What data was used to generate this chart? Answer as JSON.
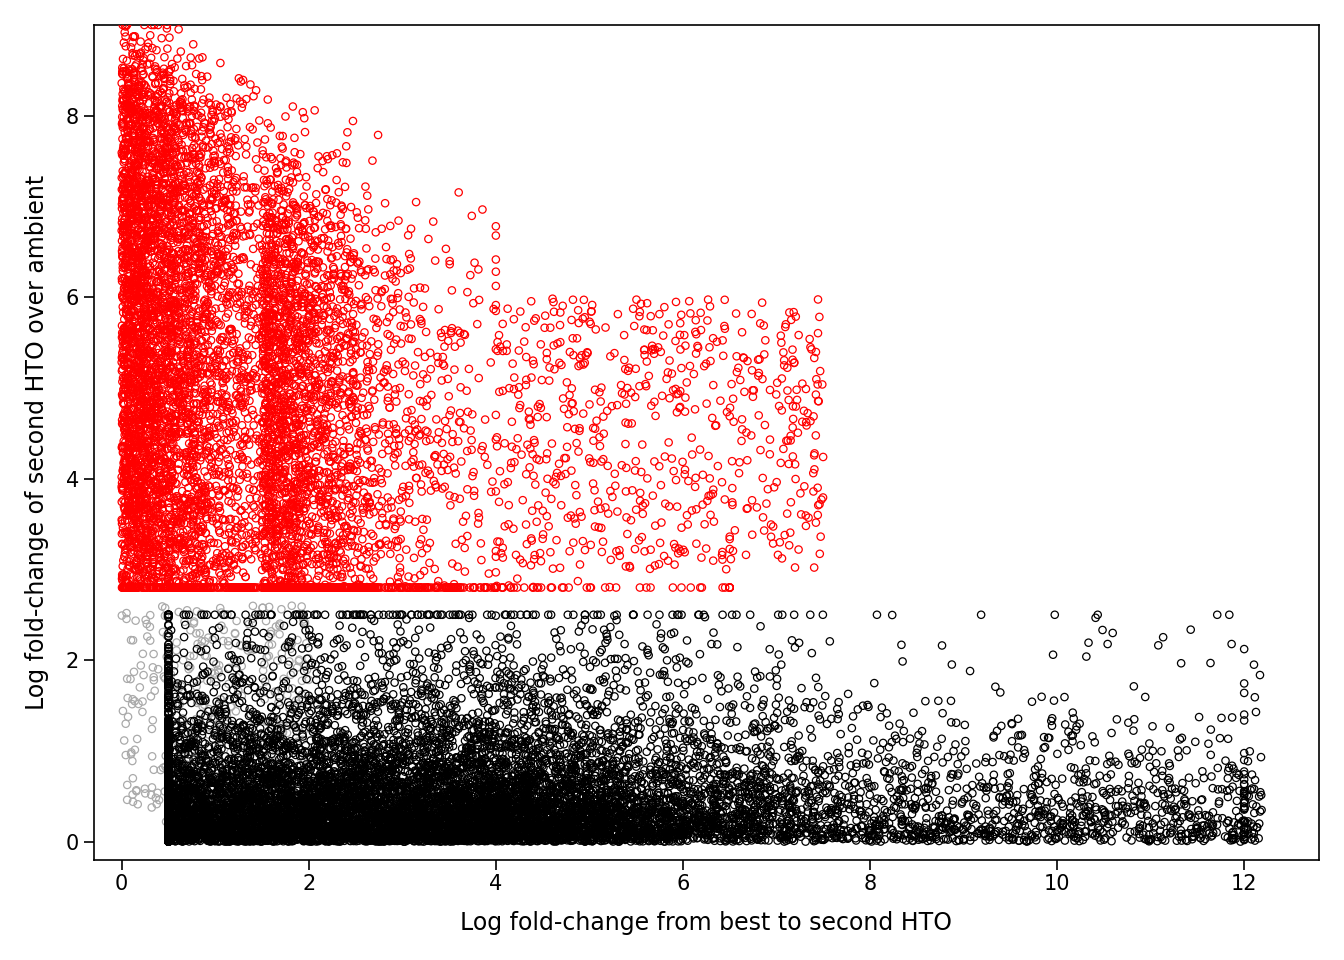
{
  "title": "",
  "xlabel": "Log fold-change from best to second HTO",
  "ylabel": "Log fold-change of second HTO over ambient",
  "xlim": [
    -0.3,
    12.8
  ],
  "ylim": [
    -0.2,
    9.0
  ],
  "xticks": [
    0,
    2,
    4,
    6,
    8,
    10,
    12
  ],
  "yticks": [
    0,
    2,
    4,
    6,
    8
  ],
  "background_color": "#ffffff",
  "n_doublets": 8000,
  "n_singlets": 12000,
  "n_gray": 400,
  "seed": 99,
  "marker_size": 28,
  "line_width": 0.9,
  "doublet_color": "red",
  "singlet_color": "black",
  "gray_color": "#aaaaaa",
  "figsize": [
    13.44,
    9.6
  ],
  "dpi": 100
}
